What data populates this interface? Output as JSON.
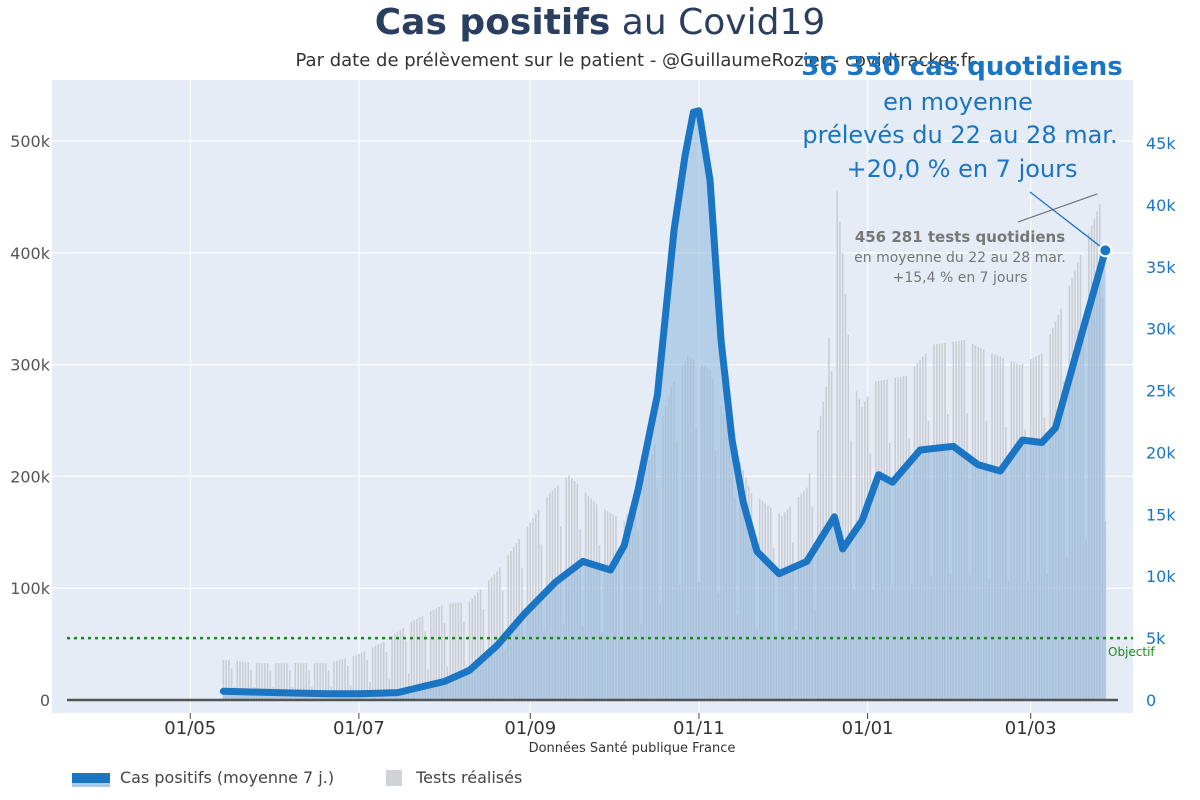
{
  "header": {
    "title_bold": "Cas positifs",
    "title_rest": " au Covid19",
    "subtitle": "Par date de prélèvement sur le patient - @GuillaumeRozier - covidtracker.fr"
  },
  "annotations": {
    "cases_big": "36 330 cas quotidiens",
    "cases_line2": "en moyenne",
    "cases_line3": "prélevés du 22 au 28 mar.",
    "cases_line4": "+20,0 % en 7 jours",
    "tests_big": "456 281 tests quotidiens",
    "tests_line2": "en moyenne du 22 au 28 mar.",
    "tests_line3": "+15,4 % en 7 jours",
    "objective": "Objectif",
    "source": "Données Santé publique France"
  },
  "legend": {
    "cases": "Cas positifs (moyenne 7 j.)",
    "tests": "Tests réalisés"
  },
  "colors": {
    "cases_line": "#1a75c4",
    "cases_fill": "#8fb8dd",
    "tests_bar": "#c9cdd2",
    "plot_bg": "#e5ecf6",
    "objective": "#1a8a1a",
    "title": "#2a3f5f"
  },
  "chart_data": {
    "type": "line",
    "x_start": "2020-03-12",
    "x_end": "2021-04-07",
    "x_ticks": [
      {
        "date": "2020-05-01",
        "label": "01/05"
      },
      {
        "date": "2020-07-01",
        "label": "01/07"
      },
      {
        "date": "2020-09-01",
        "label": "01/09"
      },
      {
        "date": "2020-11-01",
        "label": "01/11"
      },
      {
        "date": "2021-01-01",
        "label": "01/01"
      },
      {
        "date": "2021-03-01",
        "label": "01/03"
      }
    ],
    "y_left": {
      "min": 0,
      "max": 560000,
      "ticks": [
        0,
        100000,
        200000,
        300000,
        400000,
        500000
      ],
      "tick_labels": [
        "0",
        "100k",
        "200k",
        "300k",
        "400k",
        "500k"
      ]
    },
    "y_right": {
      "min": 0,
      "max": 45000,
      "ticks": [
        0,
        5000,
        10000,
        15000,
        20000,
        25000,
        30000,
        35000,
        40000,
        45000
      ],
      "tick_labels": [
        "0",
        "5k",
        "10k",
        "15k",
        "20k",
        "25k",
        "30k",
        "35k",
        "40k",
        "45k"
      ]
    },
    "objective_value": 5000,
    "series": [
      {
        "name": "Tests réalisés",
        "axis": "left",
        "points": [
          [
            "2020-05-13",
            36000
          ],
          [
            "2020-05-25",
            33000
          ],
          [
            "2020-06-05",
            33000
          ],
          [
            "2020-06-20",
            33000
          ],
          [
            "2020-06-30",
            40000
          ],
          [
            "2020-07-10",
            52000
          ],
          [
            "2020-07-20",
            70000
          ],
          [
            "2020-08-01",
            86000
          ],
          [
            "2020-08-10",
            88000
          ],
          [
            "2020-08-20",
            115000
          ],
          [
            "2020-08-31",
            155000
          ],
          [
            "2020-09-08",
            185000
          ],
          [
            "2020-09-15",
            201000
          ],
          [
            "2020-09-25",
            175000
          ],
          [
            "2020-10-05",
            160000
          ],
          [
            "2020-10-15",
            220000
          ],
          [
            "2020-10-22",
            280000
          ],
          [
            "2020-10-28",
            308000
          ],
          [
            "2020-11-05",
            295000
          ],
          [
            "2020-11-12",
            240000
          ],
          [
            "2020-11-20",
            185000
          ],
          [
            "2020-12-01",
            165000
          ],
          [
            "2020-12-10",
            190000
          ],
          [
            "2020-12-17",
            280000
          ],
          [
            "2020-12-21",
            455000
          ],
          [
            "2020-12-23",
            400000
          ],
          [
            "2020-12-26",
            290000
          ],
          [
            "2020-12-30",
            262000
          ],
          [
            "2021-01-04",
            285000
          ],
          [
            "2021-01-15",
            290000
          ],
          [
            "2021-01-25",
            318000
          ],
          [
            "2021-02-05",
            322000
          ],
          [
            "2021-02-15",
            310000
          ],
          [
            "2021-02-25",
            300000
          ],
          [
            "2021-03-05",
            310000
          ],
          [
            "2021-03-12",
            350000
          ],
          [
            "2021-03-20",
            405000
          ],
          [
            "2021-03-28",
            456281
          ]
        ]
      },
      {
        "name": "Cas positifs (moyenne 7 j.)",
        "axis": "right",
        "points": [
          [
            "2020-05-13",
            700
          ],
          [
            "2020-06-01",
            600
          ],
          [
            "2020-06-20",
            500
          ],
          [
            "2020-07-01",
            500
          ],
          [
            "2020-07-15",
            600
          ],
          [
            "2020-08-01",
            1500
          ],
          [
            "2020-08-10",
            2400
          ],
          [
            "2020-08-20",
            4400
          ],
          [
            "2020-08-30",
            7000
          ],
          [
            "2020-09-10",
            9500
          ],
          [
            "2020-09-20",
            11200
          ],
          [
            "2020-09-30",
            10500
          ],
          [
            "2020-10-05",
            12500
          ],
          [
            "2020-10-10",
            17000
          ],
          [
            "2020-10-17",
            24700
          ],
          [
            "2020-10-23",
            38000
          ],
          [
            "2020-10-27",
            44000
          ],
          [
            "2020-10-30",
            47500
          ],
          [
            "2020-11-01",
            47600
          ],
          [
            "2020-11-05",
            42000
          ],
          [
            "2020-11-09",
            29000
          ],
          [
            "2020-11-13",
            21000
          ],
          [
            "2020-11-17",
            16000
          ],
          [
            "2020-11-22",
            12000
          ],
          [
            "2020-11-30",
            10200
          ],
          [
            "2020-12-10",
            11200
          ],
          [
            "2020-12-20",
            14800
          ],
          [
            "2020-12-23",
            12200
          ],
          [
            "2020-12-30",
            14500
          ],
          [
            "2021-01-05",
            18200
          ],
          [
            "2021-01-10",
            17600
          ],
          [
            "2021-01-20",
            20200
          ],
          [
            "2021-02-01",
            20500
          ],
          [
            "2021-02-10",
            19000
          ],
          [
            "2021-02-18",
            18500
          ],
          [
            "2021-02-26",
            21000
          ],
          [
            "2021-03-05",
            20800
          ],
          [
            "2021-03-10",
            22000
          ],
          [
            "2021-03-15",
            26000
          ],
          [
            "2021-03-20",
            30000
          ],
          [
            "2021-03-28",
            36330
          ]
        ]
      }
    ]
  }
}
